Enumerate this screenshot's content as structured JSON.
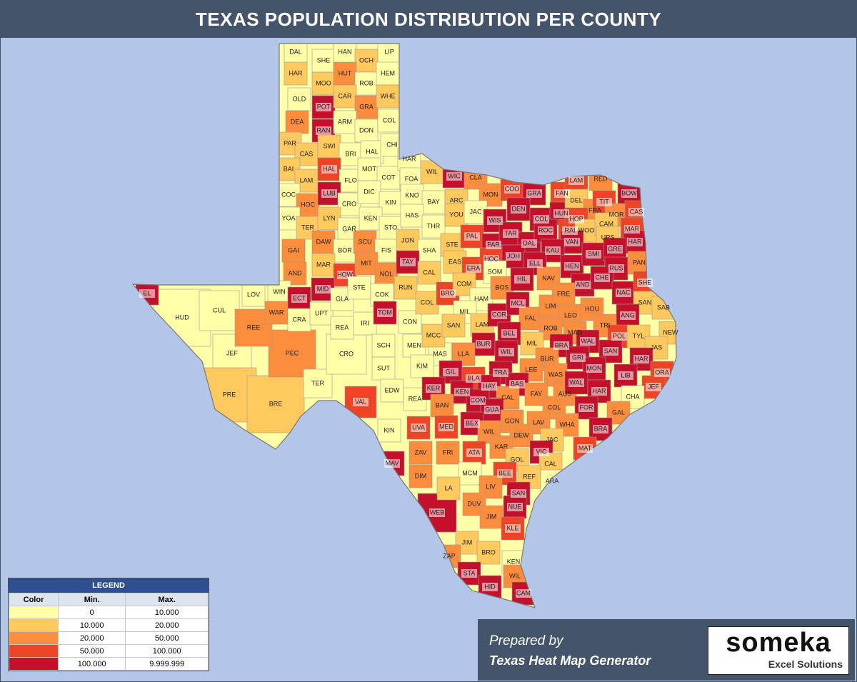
{
  "header": {
    "title": "TEXAS POPULATION DISTRIBUTION PER COUNTY"
  },
  "legend": {
    "title": "LEGEND",
    "headers": [
      "Color",
      "Min.",
      "Max."
    ],
    "rows": [
      {
        "color": "#ffffa8",
        "min": "0",
        "max": "10.000"
      },
      {
        "color": "#ffc95e",
        "min": "10.000",
        "max": "20.000"
      },
      {
        "color": "#fb8d3d",
        "min": "20.000",
        "max": "50.000"
      },
      {
        "color": "#ee4324",
        "min": "50.000",
        "max": "100.000"
      },
      {
        "color": "#c5102c",
        "min": "100.000",
        "max": "9.999.999"
      }
    ]
  },
  "footer": {
    "prepared": "Prepared by",
    "generator": "Texas Heat Map Generator",
    "logo": "someka",
    "logo_sub": "Excel Solutions"
  },
  "counties": [
    {
      "label": "HUD",
      "color": "#ffffa8"
    },
    {
      "label": "CUL",
      "color": "#ffffa8"
    },
    {
      "label": "JEF",
      "color": "#ffffa8"
    },
    {
      "label": "PRE",
      "color": "#ffc95e"
    },
    {
      "label": "BRE",
      "color": "#ffc95e"
    },
    {
      "label": "PEC",
      "color": "#fb8d3d"
    },
    {
      "label": "REE",
      "color": "#fb8d3d"
    },
    {
      "label": "TER",
      "color": "#ffffa8"
    },
    {
      "label": "CRO",
      "color": "#ffffa8"
    },
    {
      "label": "VAL",
      "color": "#ee4324"
    },
    {
      "label": "WEB",
      "color": "#c5102c"
    },
    {
      "label": "MAV",
      "color": "#c5102c"
    },
    {
      "label": "DAL",
      "color": "#ffffa8"
    },
    {
      "label": "SHE",
      "color": "#ffffa8"
    },
    {
      "label": "HAN",
      "color": "#ffffa8"
    },
    {
      "label": "OCH",
      "color": "#ffc95e"
    },
    {
      "label": "LIP",
      "color": "#ffffa8"
    },
    {
      "label": "HAR",
      "color": "#ffc95e"
    },
    {
      "label": "MOO",
      "color": "#ffc95e"
    },
    {
      "label": "HUT",
      "color": "#fb8d3d"
    },
    {
      "label": "ROB",
      "color": "#ffffa8"
    },
    {
      "label": "HEM",
      "color": "#ffffa8"
    },
    {
      "label": "OLD",
      "color": "#ffffa8"
    },
    {
      "label": "POT",
      "color": "#c5102c"
    },
    {
      "label": "CAR",
      "color": "#ffc95e"
    },
    {
      "label": "GRA",
      "color": "#fb8d3d"
    },
    {
      "label": "WHE",
      "color": "#ffc95e"
    },
    {
      "label": "DEA",
      "color": "#fb8d3d"
    },
    {
      "label": "RAN",
      "color": "#c5102c"
    },
    {
      "label": "ARM",
      "color": "#ffffa8"
    },
    {
      "label": "DON",
      "color": "#ffffa8"
    },
    {
      "label": "COL",
      "color": "#ffffa8"
    },
    {
      "label": "PAR",
      "color": "#ffc95e"
    },
    {
      "label": "CAS",
      "color": "#ffc95e"
    },
    {
      "label": "SWI",
      "color": "#ffc95e"
    },
    {
      "label": "BRI",
      "color": "#ffffa8"
    },
    {
      "label": "HAL",
      "color": "#ffffa8"
    },
    {
      "label": "CHI",
      "color": "#ffffa8"
    },
    {
      "label": "BAI",
      "color": "#ffc95e"
    },
    {
      "label": "LAM",
      "color": "#ffc95e"
    },
    {
      "label": "HAL",
      "color": "#ee4324"
    },
    {
      "label": "FLO",
      "color": "#ffffa8"
    },
    {
      "label": "MOT",
      "color": "#ffffa8"
    },
    {
      "label": "COT",
      "color": "#ffffa8"
    },
    {
      "label": "HAR",
      "color": "#ffffa8"
    },
    {
      "label": "FOA",
      "color": "#ffffa8"
    },
    {
      "label": "WIL",
      "color": "#ffc95e"
    },
    {
      "label": "WIC",
      "color": "#c5102c"
    },
    {
      "label": "CLA",
      "color": "#fb8d3d"
    },
    {
      "label": "COC",
      "color": "#ffffa8"
    },
    {
      "label": "HOC",
      "color": "#fb8d3d"
    },
    {
      "label": "LUB",
      "color": "#c5102c"
    },
    {
      "label": "CRO",
      "color": "#ffffa8"
    },
    {
      "label": "DIC",
      "color": "#ffffa8"
    },
    {
      "label": "KIN",
      "color": "#ffffa8"
    },
    {
      "label": "KNO",
      "color": "#ffffa8"
    },
    {
      "label": "BAY",
      "color": "#ffffa8"
    },
    {
      "label": "ARC",
      "color": "#ffc95e"
    },
    {
      "label": "MON",
      "color": "#fb8d3d"
    },
    {
      "label": "COO",
      "color": "#ee4324"
    },
    {
      "label": "GRA",
      "color": "#c5102c"
    },
    {
      "label": "FAN",
      "color": "#ee4324"
    },
    {
      "label": "LAM",
      "color": "#ee4324"
    },
    {
      "label": "RED",
      "color": "#fb8d3d"
    },
    {
      "label": "BOW",
      "color": "#c5102c"
    },
    {
      "label": "YOA",
      "color": "#ffffa8"
    },
    {
      "label": "TER",
      "color": "#ffc95e"
    },
    {
      "label": "LYN",
      "color": "#ffc95e"
    },
    {
      "label": "GAR",
      "color": "#ffffa8"
    },
    {
      "label": "KEN",
      "color": "#ffffa8"
    },
    {
      "label": "STO",
      "color": "#ffffa8"
    },
    {
      "label": "HAS",
      "color": "#ffffa8"
    },
    {
      "label": "THR",
      "color": "#ffffa8"
    },
    {
      "label": "YOU",
      "color": "#ffc95e"
    },
    {
      "label": "JAC",
      "color": "#ffffa8"
    },
    {
      "label": "WIS",
      "color": "#c5102c"
    },
    {
      "label": "DEN",
      "color": "#c5102c"
    },
    {
      "label": "COL",
      "color": "#c5102c"
    },
    {
      "label": "HUN",
      "color": "#c5102c"
    },
    {
      "label": "DEL",
      "color": "#ffc95e"
    },
    {
      "label": "FRA",
      "color": "#fb8d3d"
    },
    {
      "label": "TIT",
      "color": "#ee4324"
    },
    {
      "label": "MOR",
      "color": "#fb8d3d"
    },
    {
      "label": "CAS",
      "color": "#ee4324"
    },
    {
      "label": "GAI",
      "color": "#fb8d3d"
    },
    {
      "label": "DAW",
      "color": "#fb8d3d"
    },
    {
      "label": "BOR",
      "color": "#ffffa8"
    },
    {
      "label": "SCU",
      "color": "#fb8d3d"
    },
    {
      "label": "FIS",
      "color": "#ffffa8"
    },
    {
      "label": "JON",
      "color": "#ffc95e"
    },
    {
      "label": "SHA",
      "color": "#ffffa8"
    },
    {
      "label": "STE",
      "color": "#ffc95e"
    },
    {
      "label": "PAL",
      "color": "#ee4324"
    },
    {
      "label": "PAR",
      "color": "#c5102c"
    },
    {
      "label": "TAR",
      "color": "#c5102c"
    },
    {
      "label": "DAL",
      "color": "#c5102c"
    },
    {
      "label": "ROC",
      "color": "#c5102c"
    },
    {
      "label": "RAI",
      "color": "#ee4324"
    },
    {
      "label": "HOP",
      "color": "#ee4324"
    },
    {
      "label": "WOO",
      "color": "#ffc95e"
    },
    {
      "label": "CAM",
      "color": "#ffc95e"
    },
    {
      "label": "MAR",
      "color": "#ee4324"
    },
    {
      "label": "UPS",
      "color": "#ffc95e"
    },
    {
      "label": "HAR",
      "color": "#c5102c"
    },
    {
      "label": "VAN",
      "color": "#c5102c"
    },
    {
      "label": "KAU",
      "color": "#c5102c"
    },
    {
      "label": "AND",
      "color": "#fb8d3d"
    },
    {
      "label": "MAR",
      "color": "#ffc95e"
    },
    {
      "label": "HOW",
      "color": "#ee4324"
    },
    {
      "label": "MIT",
      "color": "#fb8d3d"
    },
    {
      "label": "NOL",
      "color": "#fb8d3d"
    },
    {
      "label": "TAY",
      "color": "#c5102c"
    },
    {
      "label": "CAL",
      "color": "#ffc95e"
    },
    {
      "label": "EAS",
      "color": "#ffc95e"
    },
    {
      "label": "ERA",
      "color": "#ee4324"
    },
    {
      "label": "HOC",
      "color": "#ee4324"
    },
    {
      "label": "JOH",
      "color": "#c5102c"
    },
    {
      "label": "SOM",
      "color": "#ffffa8"
    },
    {
      "label": "ELL",
      "color": "#c5102c"
    },
    {
      "label": "HEN",
      "color": "#c5102c"
    },
    {
      "label": "SMI",
      "color": "#c5102c"
    },
    {
      "label": "GRE",
      "color": "#c5102c"
    },
    {
      "label": "RUS",
      "color": "#c5102c"
    },
    {
      "label": "PAN",
      "color": "#fb8d3d"
    },
    {
      "label": "EL",
      "color": "#c5102c"
    },
    {
      "label": "LOV",
      "color": "#ffffa8"
    },
    {
      "label": "WIN",
      "color": "#ffffa8"
    },
    {
      "label": "WAR",
      "color": "#fb8d3d"
    },
    {
      "label": "ECT",
      "color": "#c5102c"
    },
    {
      "label": "MID",
      "color": "#c5102c"
    },
    {
      "label": "CRA",
      "color": "#ffffa8"
    },
    {
      "label": "UPT",
      "color": "#ffffa8"
    },
    {
      "label": "GLA",
      "color": "#ffffa8"
    },
    {
      "label": "STE",
      "color": "#ffffa8"
    },
    {
      "label": "REA",
      "color": "#ffffa8"
    },
    {
      "label": "IRI",
      "color": "#ffffa8"
    },
    {
      "label": "COK",
      "color": "#ffffa8"
    },
    {
      "label": "TOM",
      "color": "#c5102c"
    },
    {
      "label": "RUN",
      "color": "#ffc95e"
    },
    {
      "label": "CON",
      "color": "#ffffa8"
    },
    {
      "label": "COL",
      "color": "#ffc95e"
    },
    {
      "label": "BRO",
      "color": "#ee4324"
    },
    {
      "label": "COM",
      "color": "#ffc95e"
    },
    {
      "label": "HAM",
      "color": "#ffffa8"
    },
    {
      "label": "MIL",
      "color": "#ffffa8"
    },
    {
      "label": "BOS",
      "color": "#fb8d3d"
    },
    {
      "label": "HIL",
      "color": "#c5102c"
    },
    {
      "label": "NAV",
      "color": "#fb8d3d"
    },
    {
      "label": "AND",
      "color": "#c5102c"
    },
    {
      "label": "CHE",
      "color": "#c5102c"
    },
    {
      "label": "NAC",
      "color": "#c5102c"
    },
    {
      "label": "SHE",
      "color": "#ee4324"
    },
    {
      "label": "SAN",
      "color": "#ffc95e"
    },
    {
      "label": "SAB",
      "color": "#ffc95e"
    },
    {
      "label": "ANG",
      "color": "#c5102c"
    },
    {
      "label": "SCH",
      "color": "#ffffa8"
    },
    {
      "label": "MEN",
      "color": "#ffffa8"
    },
    {
      "label": "MAS",
      "color": "#ffffa8"
    },
    {
      "label": "MCC",
      "color": "#ffc95e"
    },
    {
      "label": "SAN",
      "color": "#ffc95e"
    },
    {
      "label": "LAM",
      "color": "#ffc95e"
    },
    {
      "label": "COR",
      "color": "#c5102c"
    },
    {
      "label": "MCL",
      "color": "#c5102c"
    },
    {
      "label": "FAL",
      "color": "#fb8d3d"
    },
    {
      "label": "LIM",
      "color": "#fb8d3d"
    },
    {
      "label": "FRE",
      "color": "#fb8d3d"
    },
    {
      "label": "LEO",
      "color": "#fb8d3d"
    },
    {
      "label": "HOU",
      "color": "#fb8d3d"
    },
    {
      "label": "TRI",
      "color": "#fb8d3d"
    },
    {
      "label": "ROB",
      "color": "#fb8d3d"
    },
    {
      "label": "MAD",
      "color": "#fb8d3d"
    },
    {
      "label": "NEW",
      "color": "#ffc95e"
    },
    {
      "label": "POL",
      "color": "#ee4324"
    },
    {
      "label": "TYL",
      "color": "#ffc95e"
    },
    {
      "label": "BEL",
      "color": "#c5102c"
    },
    {
      "label": "MIL",
      "color": "#ffc95e"
    },
    {
      "label": "BUR",
      "color": "#c5102c"
    },
    {
      "label": "LLA",
      "color": "#fb8d3d"
    },
    {
      "label": "WAL",
      "color": "#c5102c"
    },
    {
      "label": "SAN",
      "color": "#c5102c"
    },
    {
      "label": "JAS",
      "color": "#ffc95e"
    },
    {
      "label": "BRA",
      "color": "#c5102c"
    },
    {
      "label": "GRI",
      "color": "#c5102c"
    },
    {
      "label": "SUT",
      "color": "#ffffa8"
    },
    {
      "label": "KIM",
      "color": "#ffffa8"
    },
    {
      "label": "GIL",
      "color": "#c5102c"
    },
    {
      "label": "WIL",
      "color": "#c5102c"
    },
    {
      "label": "BUR",
      "color": "#fb8d3d"
    },
    {
      "label": "LEE",
      "color": "#fb8d3d"
    },
    {
      "label": "WAS",
      "color": "#fb8d3d"
    },
    {
      "label": "MON",
      "color": "#c5102c"
    },
    {
      "label": "HAR",
      "color": "#c5102c"
    },
    {
      "label": "LIB",
      "color": "#c5102c"
    },
    {
      "label": "ORA",
      "color": "#ee4324"
    },
    {
      "label": "TRA",
      "color": "#c5102c"
    },
    {
      "label": "BLA",
      "color": "#ee4324"
    },
    {
      "label": "EDW",
      "color": "#ffffa8"
    },
    {
      "label": "REA",
      "color": "#ffffa8"
    },
    {
      "label": "KER",
      "color": "#c5102c"
    },
    {
      "label": "KEN",
      "color": "#c5102c"
    },
    {
      "label": "HAY",
      "color": "#c5102c"
    },
    {
      "label": "BAS",
      "color": "#c5102c"
    },
    {
      "label": "CAL",
      "color": "#fb8d3d"
    },
    {
      "label": "FAY",
      "color": "#fb8d3d"
    },
    {
      "label": "AUS",
      "color": "#fb8d3d"
    },
    {
      "label": "WAL",
      "color": "#c5102c"
    },
    {
      "label": "HAR",
      "color": "#c5102c"
    },
    {
      "label": "JEF",
      "color": "#ee4324"
    },
    {
      "label": "CHA",
      "color": "#ffffa8"
    },
    {
      "label": "COM",
      "color": "#c5102c"
    },
    {
      "label": "BAN",
      "color": "#fb8d3d"
    },
    {
      "label": "GUA",
      "color": "#c5102c"
    },
    {
      "label": "FOR",
      "color": "#c5102c"
    },
    {
      "label": "GAL",
      "color": "#fb8d3d"
    },
    {
      "label": "COL",
      "color": "#fb8d3d"
    },
    {
      "label": "GON",
      "color": "#fb8d3d"
    },
    {
      "label": "KIN",
      "color": "#ffffa8"
    },
    {
      "label": "UVA",
      "color": "#ee4324"
    },
    {
      "label": "MED",
      "color": "#ee4324"
    },
    {
      "label": "BEX",
      "color": "#c5102c"
    },
    {
      "label": "WIL",
      "color": "#fb8d3d"
    },
    {
      "label": "LAV",
      "color": "#fb8d3d"
    },
    {
      "label": "WHA",
      "color": "#fb8d3d"
    },
    {
      "label": "BRA",
      "color": "#c5102c"
    },
    {
      "label": "DEW",
      "color": "#fb8d3d"
    },
    {
      "label": "JAC",
      "color": "#ffc95e"
    },
    {
      "label": "MAT",
      "color": "#ee4324"
    },
    {
      "label": "ZAV",
      "color": "#fb8d3d"
    },
    {
      "label": "FRI",
      "color": "#fb8d3d"
    },
    {
      "label": "ATA",
      "color": "#ee4324"
    },
    {
      "label": "KAR",
      "color": "#fb8d3d"
    },
    {
      "label": "VIC",
      "color": "#c5102c"
    },
    {
      "label": "GOL",
      "color": "#ffc95e"
    },
    {
      "label": "CAL",
      "color": "#ffc95e"
    },
    {
      "label": "DIM",
      "color": "#fb8d3d"
    },
    {
      "label": "MCM",
      "color": "#ffffa8"
    },
    {
      "label": "BEE",
      "color": "#ee4324"
    },
    {
      "label": "REF",
      "color": "#ffc95e"
    },
    {
      "label": "ARA",
      "color": "#ffffa8"
    },
    {
      "label": "LA",
      "color": "#ffc95e"
    },
    {
      "label": "LIV",
      "color": "#fb8d3d"
    },
    {
      "label": "SAN",
      "color": "#c5102c"
    },
    {
      "label": "DUV",
      "color": "#fb8d3d"
    },
    {
      "label": "NUE",
      "color": "#c5102c"
    },
    {
      "label": "JIM",
      "color": "#fb8d3d"
    },
    {
      "label": "KLE",
      "color": "#ee4324"
    },
    {
      "label": "JIM",
      "color": "#ffc95e"
    },
    {
      "label": "BRO",
      "color": "#ffc95e"
    },
    {
      "label": "ZAP",
      "color": "#fb8d3d"
    },
    {
      "label": "KEN",
      "color": "#ffffa8"
    },
    {
      "label": "STA",
      "color": "#c5102c"
    },
    {
      "label": "WIL",
      "color": "#fb8d3d"
    },
    {
      "label": "HID",
      "color": "#c5102c"
    },
    {
      "label": "CAM",
      "color": "#c5102c"
    }
  ]
}
